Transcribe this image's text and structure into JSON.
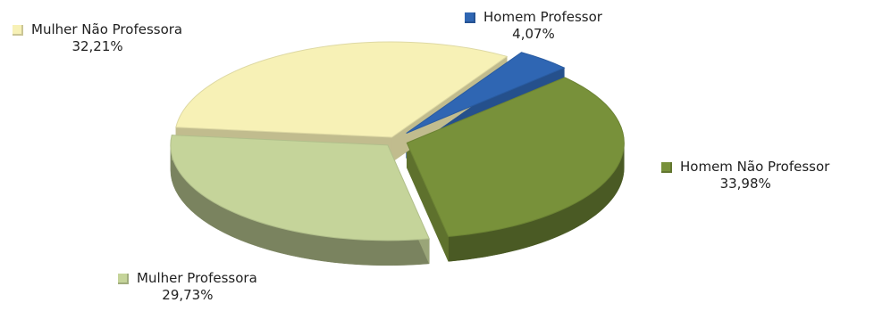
{
  "chart_data": {
    "type": "pie",
    "style": "3d-exploded",
    "series": [
      {
        "name": "Homem Professor",
        "value": 4.07,
        "value_label": "4,07%",
        "color": "#2f66b3"
      },
      {
        "name": "Homem Não Professor",
        "value": 33.98,
        "value_label": "33,98%",
        "color": "#78913a"
      },
      {
        "name": "Mulher Professora",
        "value": 29.73,
        "value_label": "29,73%",
        "color": "#c5d49a"
      },
      {
        "name": "Mulher Não Professora",
        "value": 32.21,
        "value_label": "32,21%",
        "color": "#f7f1b6"
      }
    ]
  }
}
